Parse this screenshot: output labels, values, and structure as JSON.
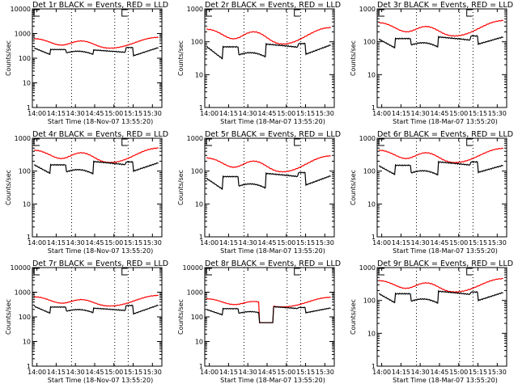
{
  "chart_data": [
    {
      "type": "line",
      "title": "Det 1r BLACK = Events, RED = LLD",
      "xlabel": "Start Time (18-Nov-07 13:55:20)",
      "ylabel": "Counts/sec",
      "ylim": [
        1,
        10000
      ],
      "yscale": "log",
      "yticks": [
        "1",
        "10",
        "100",
        "1000",
        "10000"
      ],
      "xticks": [
        "14:00",
        "14:15",
        "14:30",
        "14:45",
        "15:00",
        "15:15",
        "15:30"
      ],
      "xlim_minutes": [
        -1,
        36
      ],
      "vlines_minutes": [
        13,
        29,
        34
      ],
      "series": [
        {
          "name": "LLD",
          "color": "#ff0000",
          "profile": "smooth",
          "base": 240,
          "peak": 500,
          "start": 620,
          "end": 700
        },
        {
          "name": "Events",
          "color": "#000000",
          "profile": "stepped",
          "levels": [
            230,
            140,
            225,
            165,
            210,
            235,
            215,
            180,
            270
          ],
          "start": 260
        }
      ]
    },
    {
      "type": "line",
      "title": "Det 2r BLACK = Events, RED = LLD",
      "xlabel": "Start Time (18-Mar-07 13:55:20)",
      "ylabel": "Counts/sec",
      "ylim": [
        1,
        1000
      ],
      "yscale": "log",
      "yticks": [
        "1",
        "10",
        "100",
        "1000"
      ],
      "xticks": [
        "14:00",
        "14:15",
        "14:30",
        "14:45",
        "15:00",
        "15:15",
        "15:30"
      ],
      "xlim_minutes": [
        -1,
        36
      ],
      "vlines_minutes": [
        13,
        29,
        34
      ],
      "series": [
        {
          "name": "LLD",
          "color": "#ff0000",
          "profile": "smooth",
          "base": 78,
          "peak": 200,
          "start": 240,
          "end": 270
        },
        {
          "name": "Events",
          "color": "#000000",
          "profile": "stepped",
          "levels": [
            65,
            30,
            70,
            40,
            58,
            38,
            85,
            62,
            88
          ],
          "start": 72,
          "dip_after": 42,
          "end": 80
        }
      ]
    },
    {
      "type": "line",
      "title": "Det 3r BLACK = Events, RED = LLD",
      "xlabel": "Start Time (18-Mar-07 13:55:20)",
      "ylabel": "Counts/sec",
      "ylim": [
        1,
        1000
      ],
      "yscale": "log",
      "yticks": [
        "1",
        "10",
        "100",
        "1000"
      ],
      "xticks": [
        "14:00",
        "14:15",
        "14:30",
        "14:45",
        "15:00",
        "15:15",
        "15:30"
      ],
      "xlim_minutes": [
        -1,
        36
      ],
      "vlines_minutes": [
        13,
        29,
        34
      ],
      "series": [
        {
          "name": "LLD",
          "color": "#ff0000",
          "profile": "smooth",
          "base": 140,
          "peak": 290,
          "start": 380,
          "end": 440
        },
        {
          "name": "Events",
          "color": "#000000",
          "profile": "stepped",
          "levels": [
            115,
            65,
            125,
            80,
            105,
            75,
            140,
            115,
            150
          ],
          "start": 120,
          "dip_after": 85,
          "end": 140
        }
      ]
    },
    {
      "type": "line",
      "title": "Det 4r BLACK = Events, RED = LLD",
      "xlabel": "Start Time (18-Nov-07 13:55:20)",
      "ylabel": "Counts/sec",
      "ylim": [
        1,
        1000
      ],
      "yscale": "log",
      "yticks": [
        "1",
        "10",
        "100",
        "1000"
      ],
      "xticks": [
        "14:00",
        "14:15",
        "14:30",
        "14:45",
        "15:00",
        "15:15",
        "15:30"
      ],
      "xlim_minutes": [
        -1,
        36
      ],
      "vlines_minutes": [
        13,
        29,
        34
      ],
      "series": [
        {
          "name": "LLD",
          "color": "#ff0000",
          "profile": "smooth",
          "base": 170,
          "peak": 360,
          "start": 430,
          "end": 500
        },
        {
          "name": "Events",
          "color": "#000000",
          "profile": "stepped",
          "levels": [
            145,
            85,
            155,
            95,
            130,
            100,
            195,
            145,
            190
          ],
          "start": 155,
          "dip_after": 100,
          "end": 180
        }
      ]
    },
    {
      "type": "line",
      "title": "Det 5r BLACK = Events, RED = LLD",
      "xlabel": "Start Time (18-Mar-07 13:55:20)",
      "ylabel": "Counts/sec",
      "ylim": [
        1,
        1000
      ],
      "yscale": "log",
      "yticks": [
        "1",
        "10",
        "100",
        "1000"
      ],
      "xticks": [
        "14:00",
        "14:15",
        "14:30",
        "14:45",
        "15:00",
        "15:15",
        "15:30"
      ],
      "xlim_minutes": [
        -1,
        36
      ],
      "vlines_minutes": [
        13,
        29,
        34
      ],
      "series": [
        {
          "name": "LLD",
          "color": "#ff0000",
          "profile": "smooth",
          "base": 88,
          "peak": 200,
          "start": 250,
          "end": 290
        },
        {
          "name": "Events",
          "color": "#000000",
          "profile": "stepped",
          "levels": [
            62,
            28,
            68,
            35,
            50,
            35,
            85,
            65,
            90
          ],
          "start": 60,
          "dip_after": 38,
          "end": 72
        }
      ]
    },
    {
      "type": "line",
      "title": "Det 6r BLACK = Events, RED = LLD",
      "xlabel": "Start Time (18-Mar-07 13:55:20)",
      "ylabel": "Counts/sec",
      "ylim": [
        1,
        1000
      ],
      "yscale": "log",
      "yticks": [
        "1",
        "10",
        "100",
        "1000"
      ],
      "xticks": [
        "14:00",
        "14:15",
        "14:30",
        "14:45",
        "15:00",
        "15:15",
        "15:30"
      ],
      "xlim_minutes": [
        -1,
        36
      ],
      "vlines_minutes": [
        13,
        29,
        34
      ],
      "series": [
        {
          "name": "LLD",
          "color": "#ff0000",
          "profile": "smooth",
          "base": 170,
          "peak": 360,
          "start": 430,
          "end": 490
        },
        {
          "name": "Events",
          "color": "#000000",
          "profile": "stepped",
          "levels": [
            140,
            78,
            150,
            88,
            120,
            95,
            190,
            145,
            190
          ],
          "start": 145,
          "dip_after": 92,
          "end": 150
        }
      ]
    },
    {
      "type": "line",
      "title": "Det 7r BLACK = Events, RED = LLD",
      "xlabel": "Start Time (18-Nov-07 13:55:20)",
      "ylabel": "Counts/sec",
      "ylim": [
        1,
        10000
      ],
      "yscale": "log",
      "yticks": [
        "1",
        "10",
        "100",
        "1000",
        "10000"
      ],
      "xticks": [
        "14:00",
        "14:15",
        "14:30",
        "14:45",
        "15:00",
        "15:15",
        "15:30"
      ],
      "xlim_minutes": [
        -1,
        36
      ],
      "vlines_minutes": [
        13,
        29,
        34
      ],
      "series": [
        {
          "name": "LLD",
          "color": "#ff0000",
          "profile": "smooth",
          "base": 260,
          "peak": 500,
          "start": 650,
          "end": 740
        },
        {
          "name": "Events",
          "color": "#000000",
          "profile": "stepped",
          "levels": [
            240,
            140,
            250,
            170,
            215,
            230,
            225,
            190,
            290
          ],
          "start": 270,
          "end": 300
        }
      ]
    },
    {
      "type": "line",
      "title": "Det 8r BLACK = Events, RED = LLD",
      "xlabel": "Start Time (18-Mar-07 13:55:20)",
      "ylabel": "Counts/sec",
      "ylim": [
        1,
        10000
      ],
      "yscale": "log",
      "yticks": [
        "1",
        "10",
        "100",
        "1000",
        "10000"
      ],
      "xticks": [
        "14:00",
        "14:15",
        "14:30",
        "14:45",
        "15:00",
        "15:15",
        "15:30"
      ],
      "xlim_minutes": [
        -1,
        36
      ],
      "vlines_minutes": [
        13,
        29,
        34
      ],
      "series": [
        {
          "name": "LLD",
          "color": "#ff0000",
          "profile": "smooth",
          "base": 240,
          "peak": 420,
          "start": 540,
          "end": 620,
          "gap": [
            14.5,
            18.5
          ],
          "gap_level": 58
        },
        {
          "name": "Events",
          "color": "#000000",
          "profile": "stepped",
          "levels": [
            200,
            120,
            215,
            140,
            160,
            135,
            270,
            210,
            240
          ],
          "start": 200,
          "end": 230,
          "gap": [
            14.5,
            18.5
          ],
          "gap_level": 58
        }
      ]
    },
    {
      "type": "line",
      "title": "Det 9r BLACK = Events, RED = LLD",
      "xlabel": "Start Time (18-Mar-07 13:55:20)",
      "ylabel": "Counts/sec",
      "ylim": [
        1,
        1000
      ],
      "yscale": "log",
      "yticks": [
        "1",
        "10",
        "100",
        "1000"
      ],
      "xticks": [
        "14:00",
        "14:15",
        "14:30",
        "14:45",
        "15:00",
        "15:15",
        "15:30"
      ],
      "xlim_minutes": [
        -1,
        36
      ],
      "vlines_minutes": [
        13,
        29,
        34
      ],
      "series": [
        {
          "name": "LLD",
          "color": "#ff0000",
          "profile": "smooth",
          "base": 170,
          "peak": 340,
          "start": 400,
          "end": 460
        },
        {
          "name": "Events",
          "color": "#000000",
          "profile": "stepped",
          "levels": [
            150,
            85,
            160,
            95,
            130,
            100,
            190,
            145,
            180
          ],
          "start": 160,
          "dip_after": 100,
          "end": 175
        }
      ]
    }
  ]
}
